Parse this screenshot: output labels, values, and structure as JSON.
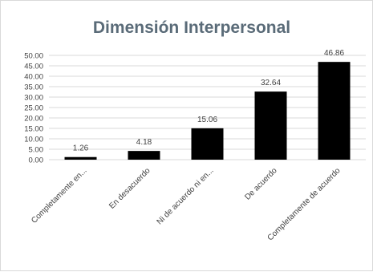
{
  "chart_data": {
    "type": "bar",
    "title": "Dimensión Interpersonal",
    "categories": [
      "Completamente en...",
      "En desacuerdo",
      "Ni de acuerdo ni en...",
      "De acuerdo",
      "Completamente de acuerdo"
    ],
    "values": [
      1.26,
      4.18,
      15.06,
      32.64,
      46.86
    ],
    "data_labels": [
      "1.26",
      "4.18",
      "15.06",
      "32.64",
      "46.86"
    ],
    "ylim": [
      0,
      50
    ],
    "y_ticks": [
      "0.00",
      "5.00",
      "10.00",
      "15.00",
      "20.00",
      "25.00",
      "30.00",
      "35.00",
      "40.00",
      "45.00",
      "50.00"
    ],
    "grid": true,
    "bar_color": "#000000",
    "grid_color": "#d9d9d9",
    "title_color": "#5a6b78"
  }
}
